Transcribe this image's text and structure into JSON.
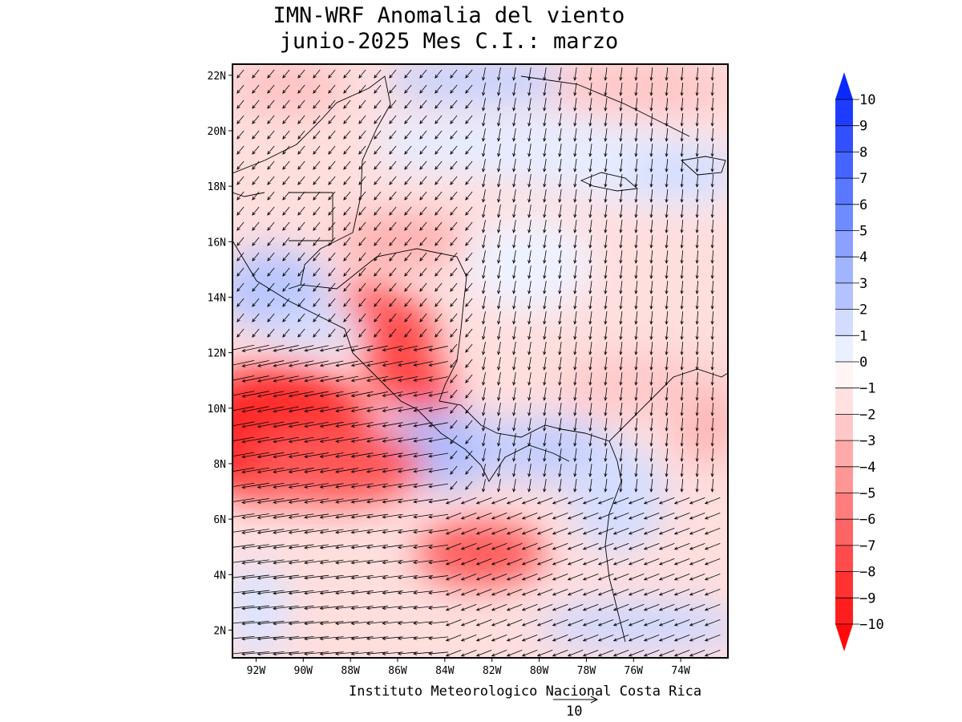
{
  "title": {
    "line1": "IMN-WRF Anomalia del viento",
    "line2": "junio-2025 Mes C.I.: marzo"
  },
  "map": {
    "lon_labels": [
      "92W",
      "90W",
      "88W",
      "86W",
      "84W",
      "82W",
      "80W",
      "78W",
      "76W",
      "74W"
    ],
    "lat_labels": [
      "2N",
      "4N",
      "6N",
      "8N",
      "10N",
      "12N",
      "14N",
      "16N",
      "18N",
      "20N",
      "22N"
    ],
    "lon_range": [
      -93,
      -72
    ],
    "lat_range": [
      1,
      22.4
    ]
  },
  "colorbar": {
    "levels": [
      "10",
      "9",
      "8",
      "7",
      "6",
      "5",
      "4",
      "3",
      "2",
      "1",
      "0",
      "−1",
      "−2",
      "−3",
      "−4",
      "−5",
      "−6",
      "−7",
      "−8",
      "−9",
      "−10"
    ],
    "colors": [
      "#1e3cff",
      "#3250ff",
      "#4664ff",
      "#5a78ff",
      "#6e8cff",
      "#8ca0ff",
      "#a0b4ff",
      "#b4c3ff",
      "#d2dcff",
      "#ebf0ff",
      "#fff5f5",
      "#ffe1e1",
      "#ffc8c8",
      "#ffaaaa",
      "#ff9696",
      "#ff7d7d",
      "#ff6464",
      "#ff4b4b",
      "#ff3232",
      "#ff1e1e"
    ],
    "over_color": "#0a28ff",
    "under_color": "#ff0a0a"
  },
  "footer": {
    "credit": "Instituto Meteorologico Nacional Costa Rica",
    "ref_vector_label": "10"
  }
}
